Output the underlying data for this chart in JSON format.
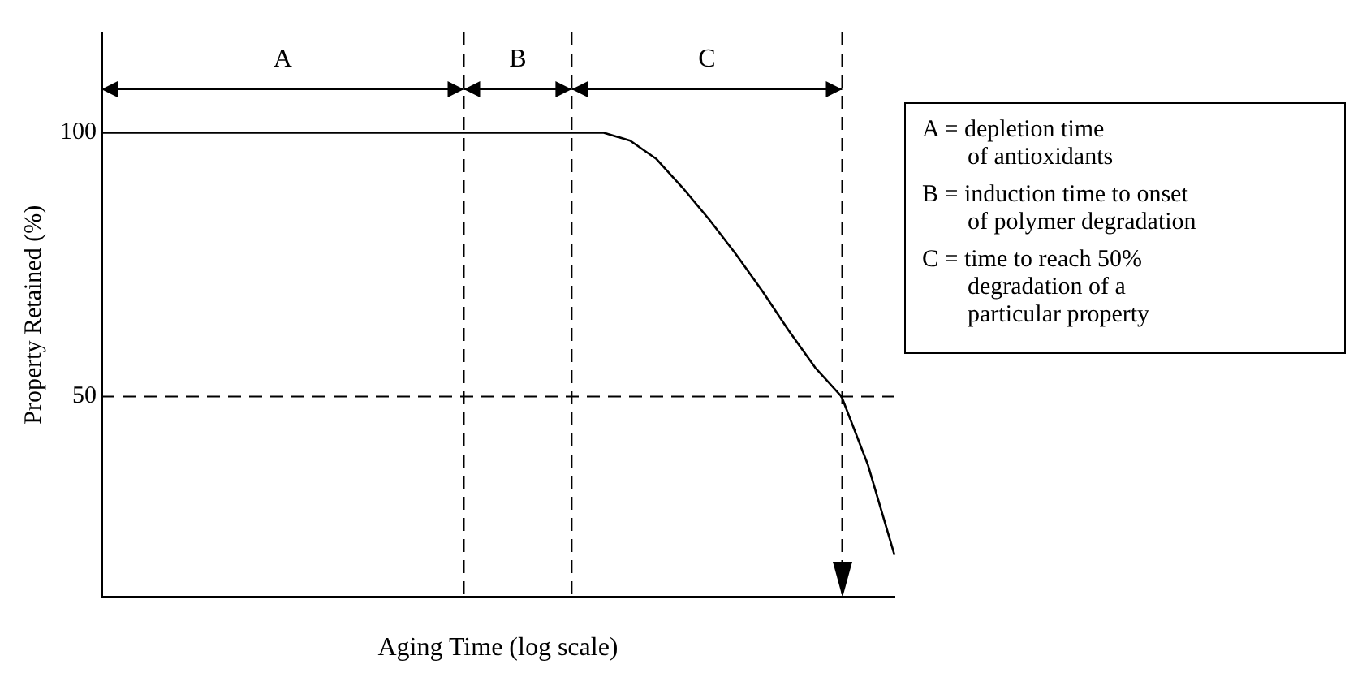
{
  "chart_data": {
    "type": "line",
    "xlabel": "Aging Time (log scale)",
    "ylabel": "Property Retained (%)",
    "categories": [
      null,
      null,
      null,
      null,
      null,
      null,
      null,
      null,
      null,
      null,
      null,
      null,
      null,
      null,
      null,
      null,
      null,
      null,
      null,
      null,
      null,
      null,
      null,
      null,
      null,
      null,
      null,
      null,
      null,
      null,
      null
    ],
    "series": [
      {
        "color": "#000000",
        "values": [
          100,
          100,
          100,
          100,
          100,
          100,
          100,
          100,
          100,
          100,
          100,
          100,
          100,
          100,
          100,
          100,
          100,
          100,
          100,
          100,
          98.5,
          95,
          89.5,
          83.5,
          77,
          70,
          62.5,
          55.5,
          50,
          37,
          20
        ]
      }
    ],
    "ylim": [
      12,
      119
    ],
    "yticks": [
      50,
      100
    ],
    "tick_labels": "y",
    "grid": false,
    "legend": false,
    "marker": "none",
    "line_style": "solid",
    "ref_lines": [
      {
        "axis": "y",
        "value": 50,
        "line_style": "dashed"
      }
    ],
    "annotations": [
      "A",
      "B",
      "C",
      "A = depletion time\nof antioxidants",
      "B = induction time to onset\nof polymer degradation",
      "C = time to reach 50%\ndegradation of a\nparticular property"
    ]
  }
}
